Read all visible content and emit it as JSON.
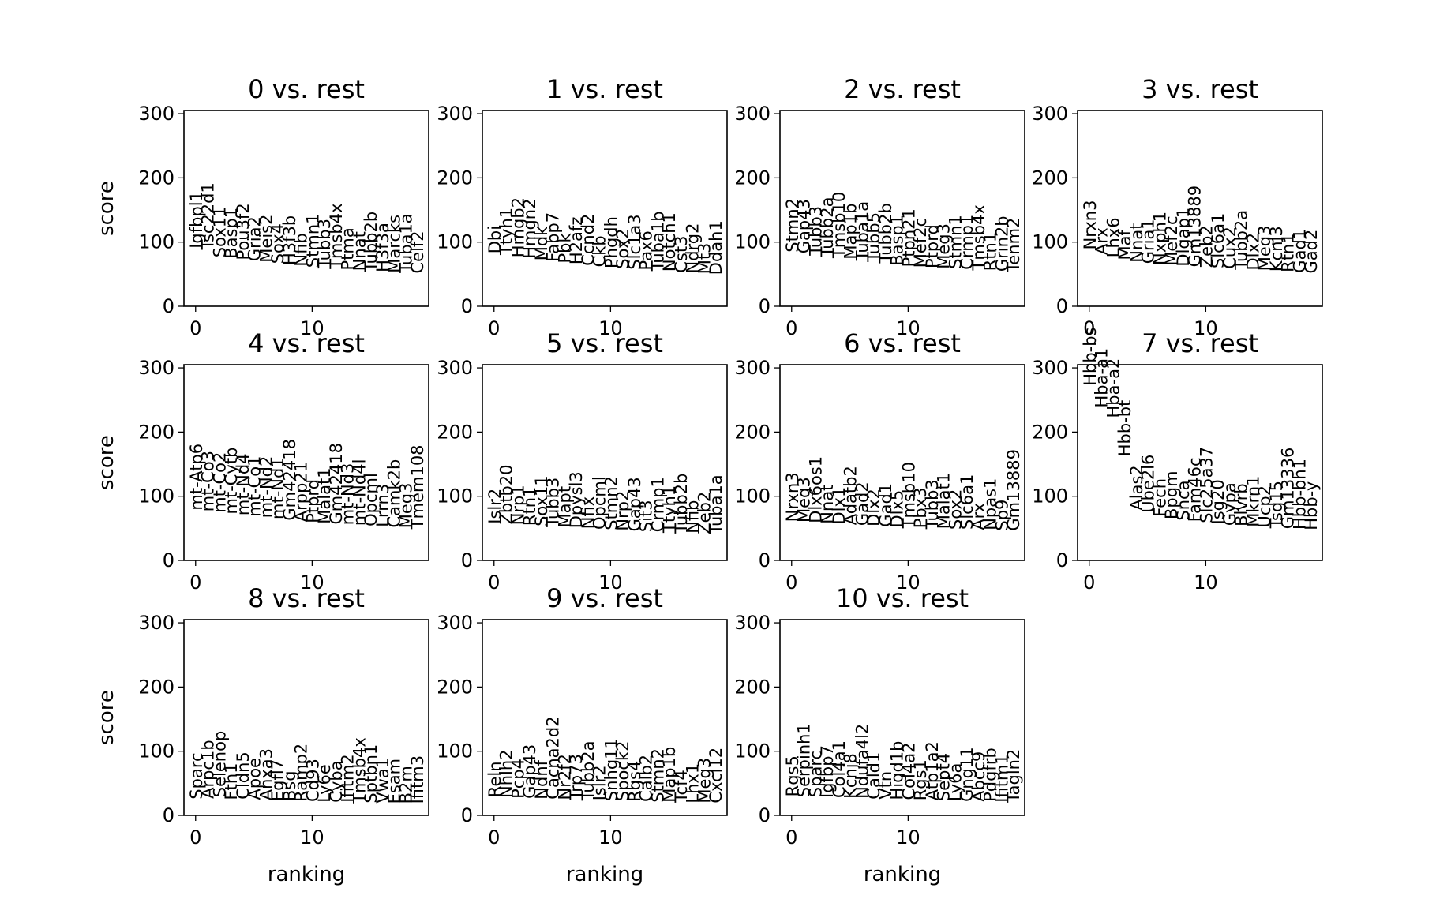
{
  "chart_data": [
    {
      "type": "text-scatter",
      "title": "0 vs. rest",
      "xlabel": "",
      "ylabel": "score",
      "xlim": [
        -1,
        20
      ],
      "ylim": [
        0,
        305
      ],
      "xticks": [
        "0",
        "10"
      ],
      "yticks": [
        "0",
        "100",
        "200",
        "300"
      ],
      "grid": false,
      "genes": [
        "Igfbpl1",
        "Tsc22d1",
        "Sox11",
        "Basp1",
        "Pou3f2",
        "Gria2",
        "Meis2",
        "Sox4",
        "H3f3b",
        "Nfib",
        "Stmn1",
        "Tubb3",
        "Tmsb4x",
        "Ptma",
        "Nnat",
        "Tubb2b",
        "H3f3a",
        "Marcks",
        "Tuba1a",
        "Celf2"
      ],
      "scores": [
        90,
        88,
        76,
        74,
        72,
        70,
        68,
        66,
        64,
        62,
        60,
        59,
        58,
        56,
        55,
        54,
        53,
        52,
        52,
        51
      ]
    },
    {
      "type": "text-scatter",
      "title": "1 vs. rest",
      "xlabel": "",
      "ylabel": "",
      "xlim": [
        -1,
        20
      ],
      "ylim": [
        0,
        305
      ],
      "xticks": [
        "0",
        "10"
      ],
      "yticks": [
        "0",
        "100",
        "200",
        "300"
      ],
      "grid": false,
      "genes": [
        "Dbi",
        "Ttyh1",
        "Hmgb2",
        "Hmgn2",
        "Mdk",
        "Fabp7",
        "Pbk",
        "H2afz",
        "Ccnd2",
        "Ckb",
        "Phgdh",
        "Sox2",
        "Slc1a3",
        "Pax6",
        "Tuba1b",
        "Notch1",
        "Cst3",
        "Ndrg2",
        "Mt3",
        "Ddah1"
      ],
      "scores": [
        82,
        80,
        76,
        74,
        71,
        69,
        67,
        65,
        63,
        61,
        59,
        58,
        57,
        56,
        55,
        54,
        52,
        51,
        50,
        49
      ]
    },
    {
      "type": "text-scatter",
      "title": "2 vs. rest",
      "xlabel": "",
      "ylabel": "",
      "xlim": [
        -1,
        20
      ],
      "ylim": [
        0,
        305
      ],
      "xticks": [
        "0",
        "10"
      ],
      "yticks": [
        "0",
        "100",
        "200",
        "300"
      ],
      "grid": false,
      "genes": [
        "Stmn2",
        "Gap43",
        "Tubb3",
        "Tubb2a",
        "Tmsb10",
        "Map1b",
        "Tuba1a",
        "Tubb5",
        "Tubb2b",
        "Basp1",
        "Ptpn21",
        "Mef2c",
        "Ptprd",
        "Meg3",
        "Stmn1",
        "Crmp1",
        "Tmsb4x",
        "Rtn1",
        "Grin2b",
        "Tenm2"
      ],
      "scores": [
        84,
        82,
        79,
        77,
        75,
        73,
        71,
        69,
        67,
        63,
        61,
        60,
        59,
        58,
        58,
        57,
        56,
        55,
        54,
        53
      ]
    },
    {
      "type": "text-scatter",
      "title": "3 vs. rest",
      "xlabel": "",
      "ylabel": "",
      "xlim": [
        -1,
        20
      ],
      "ylim": [
        0,
        305
      ],
      "xticks": [
        "0",
        "10"
      ],
      "yticks": [
        "0",
        "100",
        "200",
        "300"
      ],
      "grid": false,
      "genes": [
        "Nrxn3",
        "Arx",
        "Lhx6",
        "Maf",
        "Nnat",
        "Gria1",
        "Nxph1",
        "Mef2c",
        "Dlgap1",
        "Gm13889",
        "Zeb2",
        "Slc6a1",
        "Cux2",
        "Tubb2a",
        "Dlx2",
        "Meg3",
        "Kcnj3",
        "Rtn1",
        "Gad1",
        "Gad2"
      ],
      "scores": [
        88,
        80,
        76,
        72,
        68,
        66,
        64,
        63,
        62,
        61,
        60,
        59,
        58,
        57,
        56,
        55,
        54,
        53,
        52,
        51
      ]
    },
    {
      "type": "text-scatter",
      "title": "4 vs. rest",
      "xlabel": "",
      "ylabel": "score",
      "xlim": [
        -1,
        20
      ],
      "ylim": [
        0,
        305
      ],
      "xticks": [
        "0",
        "10"
      ],
      "yticks": [
        "0",
        "100",
        "200",
        "300"
      ],
      "grid": false,
      "genes": [
        "mt-Atp6",
        "mt-Co3",
        "mt-Co2",
        "mt-Cytb",
        "mt-Nd4",
        "mt-Co1",
        "mt-Nd2",
        "mt-Nd1",
        "Gm42418",
        "Arpp21",
        "Ptprd",
        "Malat1",
        "Gm42418",
        "mt-Nd3",
        "mt-Nd4l",
        "Opcml",
        "Lrrn3",
        "Camk2b",
        "Meg3",
        "Tmem108"
      ],
      "scores": [
        78,
        76,
        74,
        72,
        70,
        68,
        66,
        64,
        62,
        60,
        58,
        57,
        56,
        55,
        54,
        53,
        52,
        51,
        50,
        49
      ]
    },
    {
      "type": "text-scatter",
      "title": "5 vs. rest",
      "xlabel": "",
      "ylabel": "",
      "xlim": [
        -1,
        20
      ],
      "ylim": [
        0,
        305
      ],
      "xticks": [
        "0",
        "10"
      ],
      "yticks": [
        "0",
        "100",
        "200",
        "300"
      ],
      "grid": false,
      "genes": [
        "Islr2",
        "Zbtb20",
        "Nrp1",
        "Rtn1",
        "Sox11",
        "Tubb3",
        "Mapt",
        "Dpysl3",
        "Nfix",
        "Opcml",
        "Stmn2",
        "Nrp2",
        "Gap43",
        "Sit3",
        "Crmp1",
        "Ttyh1",
        "Tubb2b",
        "Nfib",
        "Zeb2",
        "Tuba1a"
      ],
      "scores": [
        57,
        56,
        55,
        54,
        53,
        52,
        51,
        50,
        49,
        48,
        47,
        46,
        45,
        44,
        44,
        43,
        42,
        42,
        41,
        41
      ]
    },
    {
      "type": "text-scatter",
      "title": "6 vs. rest",
      "xlabel": "",
      "ylabel": "",
      "xlim": [
        -1,
        20
      ],
      "ylim": [
        0,
        305
      ],
      "xticks": [
        "0",
        "10"
      ],
      "yticks": [
        "0",
        "100",
        "200",
        "300"
      ],
      "grid": false,
      "genes": [
        "Nrxn3",
        "Meg3",
        "Dlx6os1",
        "Nnat",
        "Dlx1",
        "Adatb2",
        "Gad2",
        "Dlx2",
        "Gad1",
        "Dlx5",
        "Tmsb10",
        "Pbx3",
        "Tubb3",
        "Malat1",
        "Sox2",
        "Slc6a1",
        "Arx",
        "Npas1",
        "Sp9",
        "Gm13889"
      ],
      "scores": [
        60,
        59,
        58,
        57,
        56,
        55,
        54,
        53,
        52,
        51,
        50,
        50,
        49,
        49,
        48,
        48,
        47,
        47,
        46,
        46
      ]
    },
    {
      "type": "text-scatter",
      "title": "7 vs. rest",
      "xlabel": "",
      "ylabel": "",
      "xlim": [
        -1,
        20
      ],
      "ylim": [
        0,
        305
      ],
      "xticks": [
        "0",
        "10"
      ],
      "yticks": [
        "0",
        "100",
        "200",
        "300"
      ],
      "grid": false,
      "genes": [
        "Hbb-bs",
        "Hba-a1",
        "Hba-a2",
        "Hbb-bt",
        "Alas2",
        "Ube2l6",
        "Fech",
        "Bpgm",
        "Snca",
        "Fam46c",
        "Slc25a37",
        "Isg20",
        "Gypa",
        "Blvrb",
        "Mkrn1",
        "Ucp2",
        "Tsg15",
        "Gm13336",
        "Hbb-bh1",
        "Hbb-y"
      ],
      "scores": [
        272,
        238,
        222,
        162,
        78,
        74,
        68,
        64,
        62,
        60,
        58,
        56,
        54,
        53,
        52,
        51,
        50,
        49,
        48,
        47
      ]
    },
    {
      "type": "text-scatter",
      "title": "8 vs. rest",
      "xlabel": "ranking",
      "ylabel": "score",
      "xlim": [
        -1,
        20
      ],
      "ylim": [
        0,
        305
      ],
      "xticks": [
        "0",
        "10"
      ],
      "yticks": [
        "0",
        "100",
        "200",
        "300"
      ],
      "grid": false,
      "genes": [
        "Sparc",
        "Arpc1b",
        "Selenop",
        "Fth1",
        "Cldn5",
        "Apoe",
        "Anxa3",
        "Egfl7",
        "Bsg",
        "Ramp2",
        "Cd93",
        "Ly6e",
        "Cyba",
        "Ifitm2",
        "Tmsb4x",
        "Sptbn1",
        "Vwa1",
        "Esam",
        "B2m",
        "Ifitm3"
      ],
      "scores": [
        25,
        26,
        28,
        24,
        25,
        24,
        23,
        22,
        22,
        21,
        21,
        20,
        20,
        20,
        19,
        19,
        19,
        18,
        18,
        18
      ]
    },
    {
      "type": "text-scatter",
      "title": "9 vs. rest",
      "xlabel": "ranking",
      "ylabel": "",
      "xlim": [
        -1,
        20
      ],
      "ylim": [
        0,
        305
      ],
      "xticks": [
        "0",
        "10"
      ],
      "yticks": [
        "0",
        "100",
        "200",
        "300"
      ],
      "grid": false,
      "genes": [
        "Reln",
        "Nhlh2",
        "Pcp4",
        "Gap43",
        "Ndnf",
        "Cacna2d2",
        "Nr2f2",
        "Trp73",
        "Tubb2a",
        "Islr2",
        "Snhg11",
        "Spock2",
        "Rgs4",
        "Calb2",
        "Stmn2",
        "Map1b",
        "Tcf4",
        "Lhx1",
        "Meg3",
        "Cxcl12"
      ],
      "scores": [
        28,
        27,
        26,
        26,
        25,
        25,
        24,
        24,
        23,
        23,
        22,
        22,
        21,
        21,
        20,
        20,
        20,
        19,
        19,
        19
      ]
    },
    {
      "type": "text-scatter",
      "title": "10 vs. rest",
      "xlabel": "ranking",
      "ylabel": "",
      "xlim": [
        -1,
        20
      ],
      "ylim": [
        0,
        305
      ],
      "xticks": [
        "0",
        "10"
      ],
      "yticks": [
        "0",
        "100",
        "200",
        "300"
      ],
      "grid": false,
      "genes": [
        "Rgs5",
        "Serpinh1",
        "Sparc",
        "Igfbp7",
        "Col4a1",
        "Kcnj8",
        "Ndufa4l2",
        "Cald1",
        "Vtn",
        "Higd1b",
        "Col4a2",
        "Rgs1",
        "Atp1a2",
        "Sept4",
        "Ly6a",
        "Gng11",
        "Abcc9",
        "Pdgfrb",
        "Ifitm1",
        "Tagln2"
      ],
      "scores": [
        29,
        28,
        28,
        27,
        27,
        26,
        26,
        25,
        25,
        24,
        24,
        23,
        23,
        22,
        22,
        21,
        21,
        21,
        20,
        20
      ]
    }
  ]
}
